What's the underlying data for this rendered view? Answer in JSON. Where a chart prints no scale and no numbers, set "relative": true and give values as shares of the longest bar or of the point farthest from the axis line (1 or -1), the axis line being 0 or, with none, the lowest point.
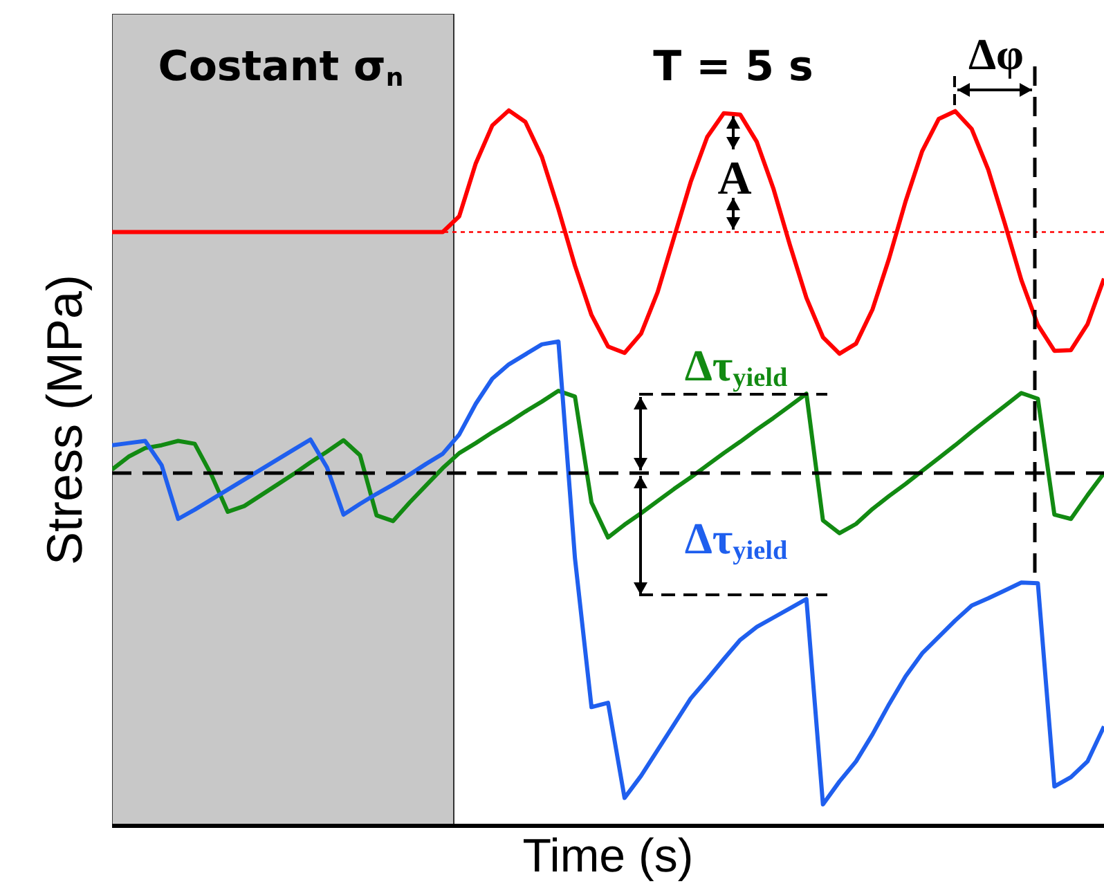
{
  "chart_data": {
    "type": "line",
    "relative": true,
    "xlabel": "Time (s)",
    "ylabel": "Stress (MPa)",
    "marker": "none",
    "line_style": "solid",
    "categories": [
      null,
      null,
      null,
      null,
      null,
      null,
      null,
      null,
      null,
      null,
      null,
      null,
      null,
      null,
      null,
      null,
      null,
      null,
      null,
      null,
      null,
      null,
      null,
      null,
      null,
      null,
      null,
      null,
      null,
      null,
      null,
      null,
      null,
      null,
      null,
      null,
      null,
      null,
      null,
      null,
      null,
      null,
      null,
      null,
      null,
      null,
      null,
      null,
      null,
      null,
      null,
      null,
      null,
      null,
      null,
      null,
      null,
      null,
      null,
      null,
      null
    ],
    "series": [
      {
        "color": "#ff0000",
        "values": [
          0.83,
          0.83,
          0.83,
          0.83,
          0.83,
          0.83,
          0.83,
          0.83,
          0.83,
          0.83,
          0.83,
          0.83,
          0.83,
          0.83,
          0.83,
          0.83,
          0.83,
          0.83,
          0.83,
          0.83,
          0.83,
          0.852,
          0.926,
          0.979,
          1.0,
          0.984,
          0.935,
          0.862,
          0.783,
          0.714,
          0.67,
          0.661,
          0.688,
          0.746,
          0.823,
          0.9,
          0.963,
          0.996,
          0.994,
          0.956,
          0.891,
          0.812,
          0.738,
          0.683,
          0.66,
          0.674,
          0.722,
          0.793,
          0.873,
          0.943,
          0.988,
          0.999,
          0.974,
          0.917,
          0.842,
          0.763,
          0.7,
          0.664,
          0.665,
          0.701,
          0.765
        ]
      },
      {
        "color": "#128a12",
        "values": [
          0.498,
          0.516,
          0.528,
          0.532,
          0.538,
          0.534,
          0.491,
          0.439,
          0.447,
          0.462,
          0.477,
          0.492,
          0.508,
          0.523,
          0.539,
          0.518,
          0.434,
          0.426,
          0.452,
          0.476,
          0.5,
          0.521,
          0.535,
          0.55,
          0.564,
          0.579,
          0.593,
          0.608,
          0.6,
          0.452,
          0.403,
          0.421,
          0.437,
          0.454,
          0.471,
          0.487,
          0.504,
          0.521,
          0.537,
          0.554,
          0.57,
          0.587,
          0.604,
          0.427,
          0.409,
          0.422,
          0.443,
          0.461,
          0.478,
          0.496,
          0.514,
          0.532,
          0.551,
          0.569,
          0.587,
          0.605,
          0.597,
          0.435,
          0.429,
          0.462,
          0.493
        ]
      },
      {
        "color": "#1f5fee",
        "values": [
          0.532,
          0.535,
          0.538,
          0.504,
          0.429,
          0.442,
          0.456,
          0.47,
          0.484,
          0.498,
          0.512,
          0.526,
          0.54,
          0.501,
          0.435,
          0.45,
          0.464,
          0.477,
          0.491,
          0.506,
          0.52,
          0.547,
          0.59,
          0.625,
          0.645,
          0.659,
          0.673,
          0.677,
          0.374,
          0.166,
          0.172,
          0.039,
          0.07,
          0.106,
          0.142,
          0.178,
          0.205,
          0.233,
          0.26,
          0.278,
          0.291,
          0.304,
          0.317,
          0.03,
          0.062,
          0.09,
          0.128,
          0.17,
          0.209,
          0.241,
          0.264,
          0.287,
          0.308,
          0.318,
          0.329,
          0.34,
          0.339,
          0.055,
          0.068,
          0.09,
          0.139
        ]
      }
    ],
    "ref_lines": [
      {
        "axis": "y",
        "value": 0.493,
        "color": "#000000",
        "line_style": "dashed"
      },
      {
        "axis": "y",
        "value": 0.83,
        "color": "#ff0000",
        "line_style": "dotted"
      }
    ],
    "annotations": [
      "Costant σ$_{n}$",
      "T = 5 s",
      "A",
      "Δφ",
      "Δτ$_{yield}$",
      "Δτ$_{yield}$"
    ]
  }
}
